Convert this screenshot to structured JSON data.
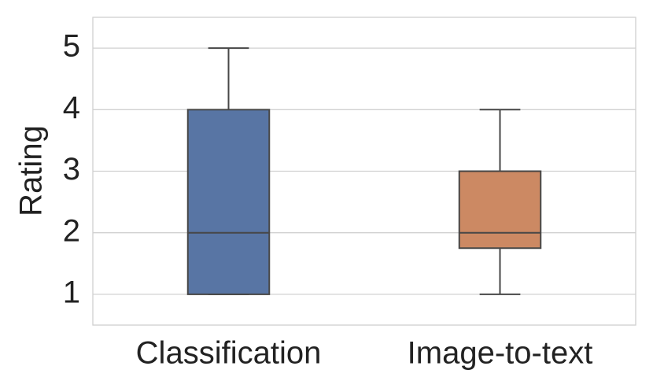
{
  "chart_data": {
    "type": "box",
    "y_label": "Rating",
    "categories": [
      "Classification",
      "Image-to-text"
    ],
    "min": [
      1,
      1
    ],
    "q1": [
      1,
      1.75
    ],
    "median": [
      2,
      2
    ],
    "q3": [
      4,
      3
    ],
    "max": [
      5,
      4
    ],
    "colors": [
      "#5875a4",
      "#cc8963"
    ],
    "ylim": [
      0.5,
      5.5
    ],
    "yticks": [
      1,
      2,
      3,
      4,
      5
    ],
    "grid": true
  }
}
